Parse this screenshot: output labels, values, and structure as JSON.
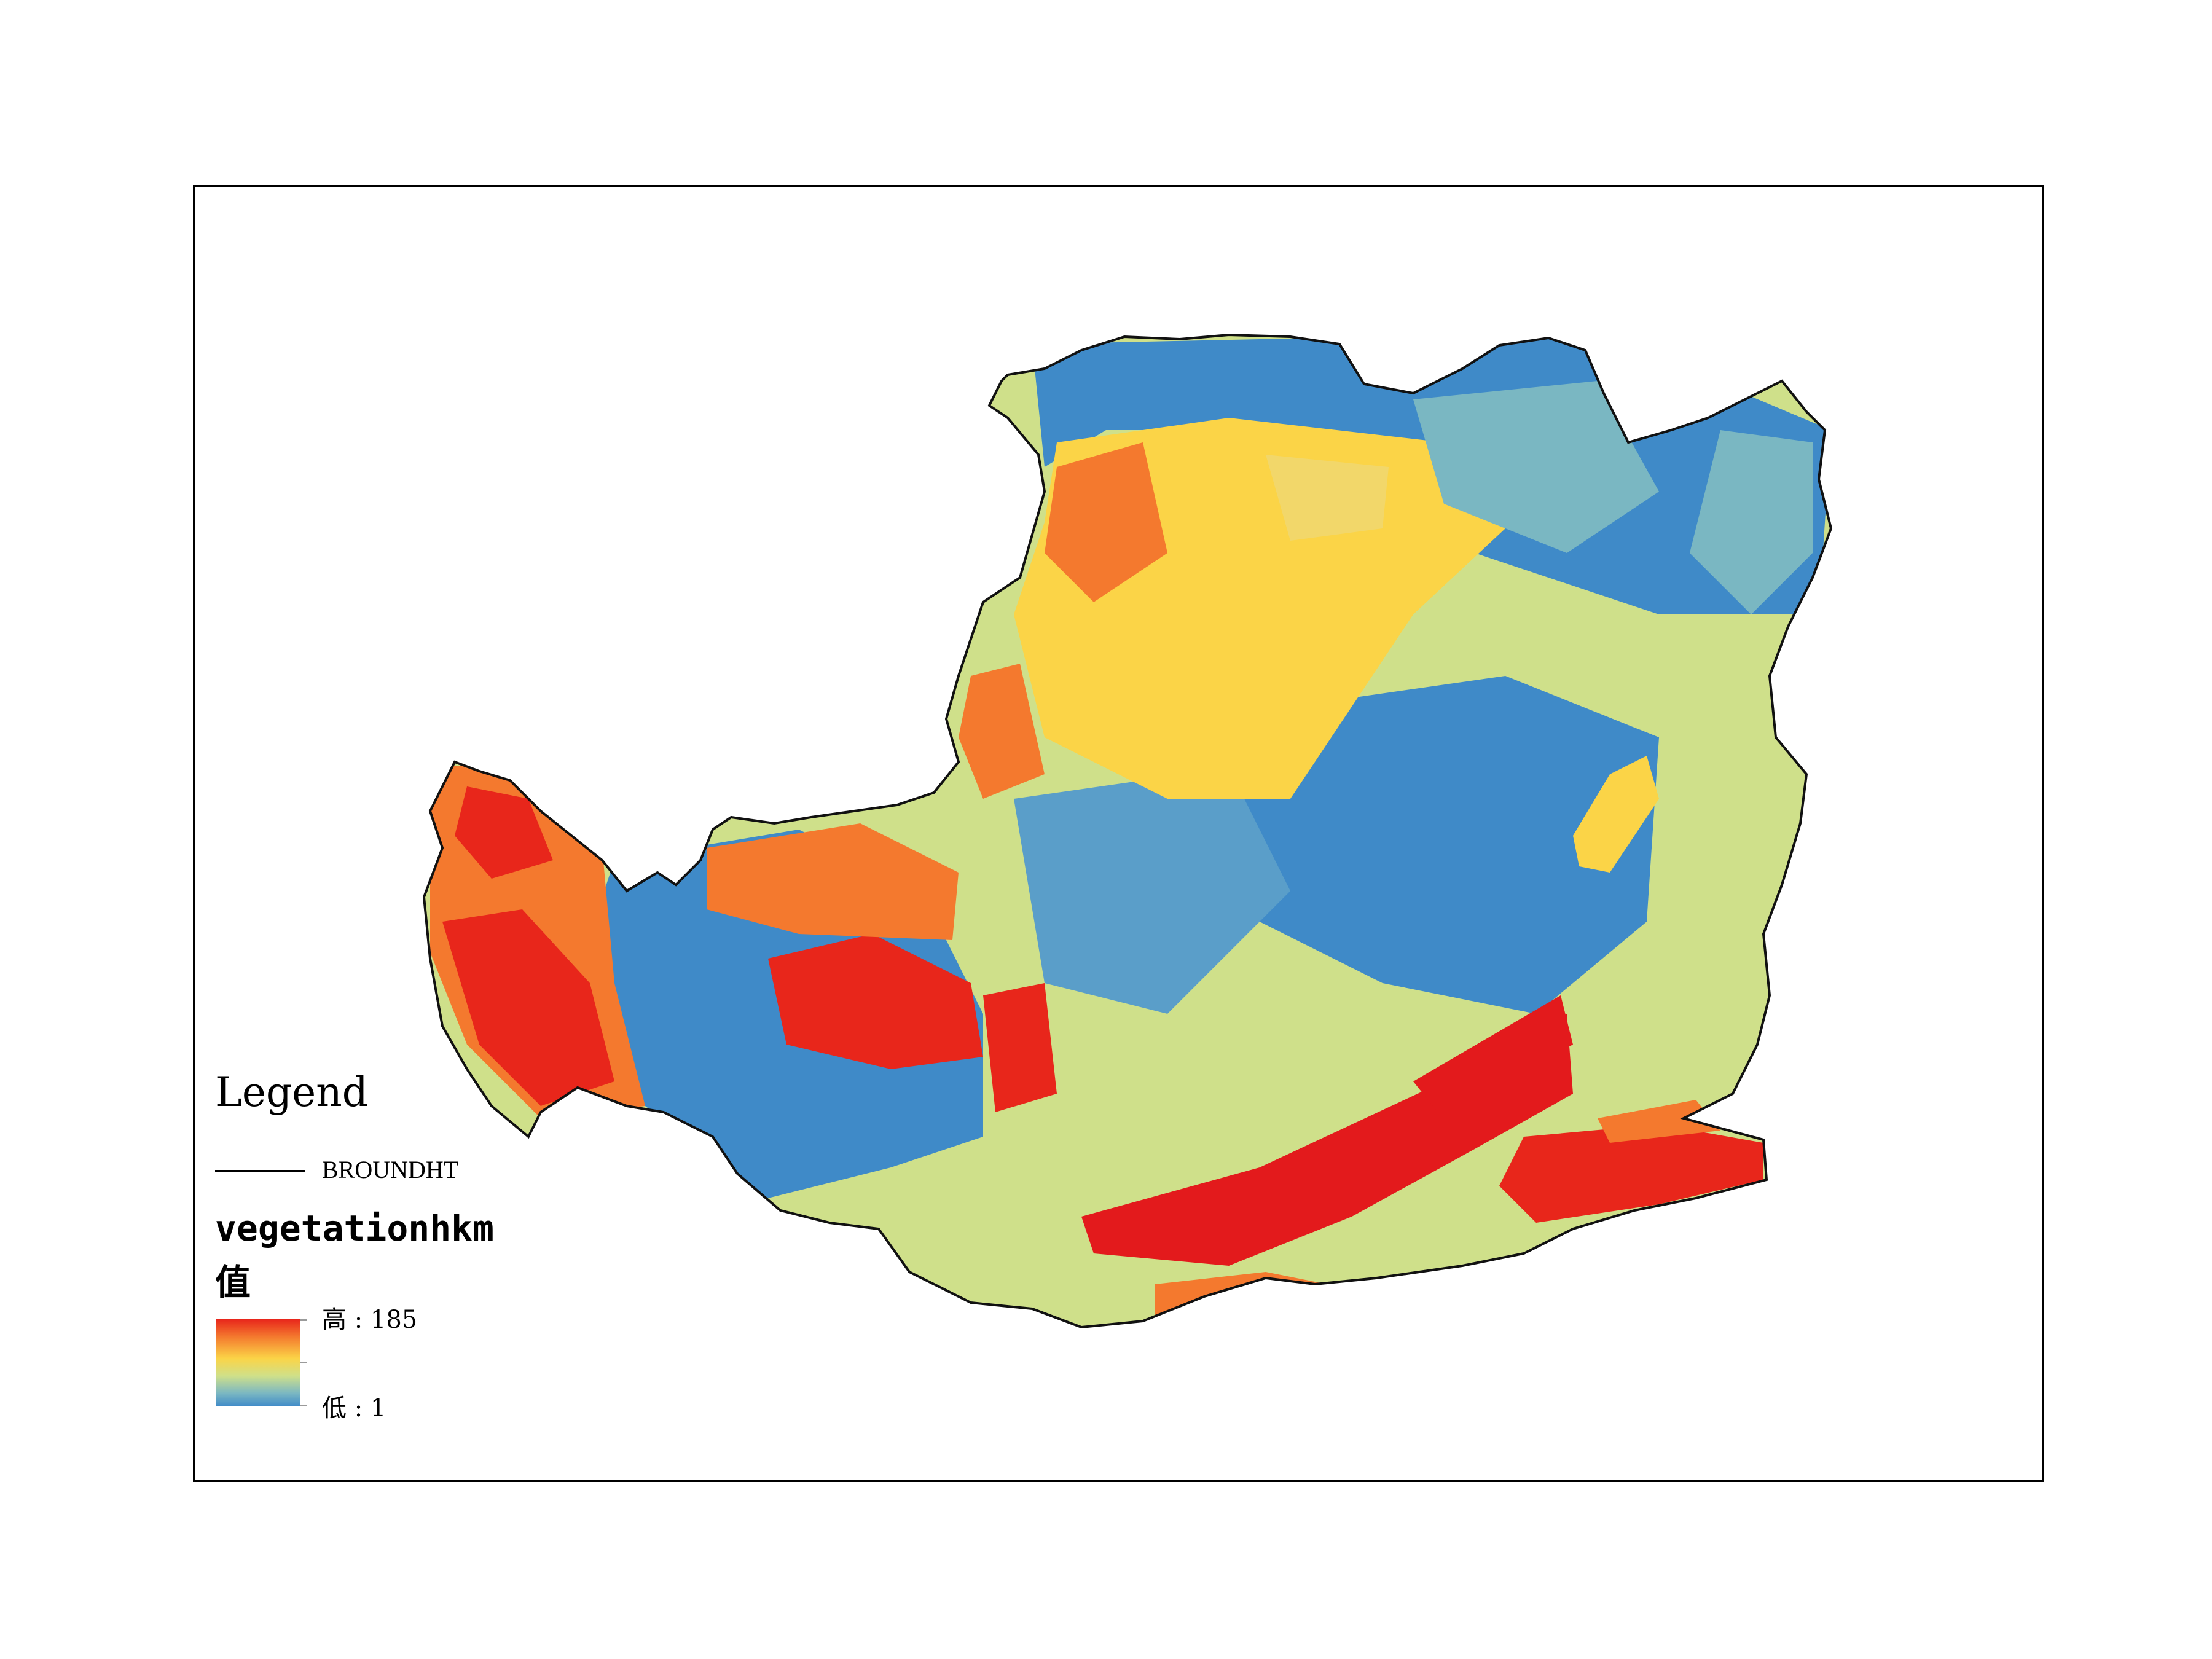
{
  "legend": {
    "title": "Legend",
    "boundary_layer": "BROUNDHT",
    "raster_layer": "vegetationhkm",
    "field": "值",
    "high_label": "高 : 185",
    "low_label": "低 : 1",
    "color_ramp": [
      "#e8261b",
      "#f4792e",
      "#fbd447",
      "#cfe08a",
      "#7ab7c2",
      "#3f8ac8"
    ]
  },
  "colors": {
    "high": "#e8261b",
    "orange": "#f4792e",
    "yellow": "#fbd447",
    "lightgreen": "#cfe08a",
    "teal": "#7ab7c2",
    "blue": "#3f8ac8",
    "outline": "#111111"
  }
}
